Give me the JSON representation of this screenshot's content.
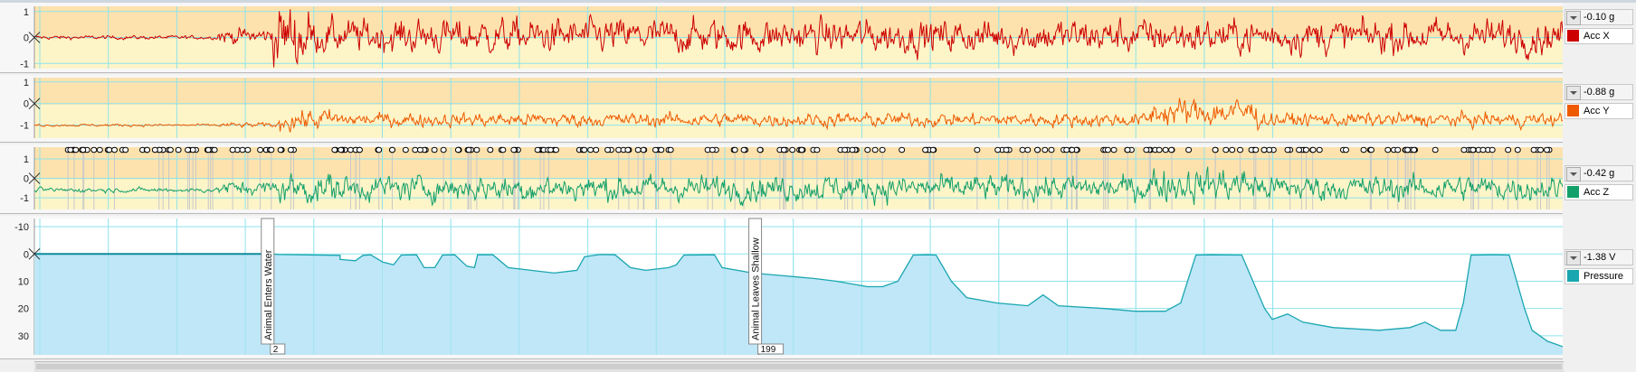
{
  "chart_data": [
    {
      "type": "line",
      "series": [
        {
          "name": "Acc X",
          "color": "#cc0000"
        }
      ],
      "unit": "g",
      "current_value": "-0.10 g",
      "ylim": [
        -1.2,
        1.2
      ],
      "yticks": [
        "1",
        "0",
        "-1"
      ],
      "ytick_values": [
        1,
        0,
        -1
      ],
      "background": "#fdf5c8",
      "band": "#fde2ad"
    },
    {
      "type": "line",
      "series": [
        {
          "name": "Acc Y",
          "color": "#ee5a00"
        }
      ],
      "unit": "g",
      "current_value": "-0.88 g",
      "ylim": [
        -1.6,
        1.2
      ],
      "yticks": [
        "1",
        "0",
        "-1"
      ],
      "ytick_values": [
        1,
        0,
        -1
      ],
      "background": "#fdf5c8",
      "band": "#fde2ad"
    },
    {
      "type": "line",
      "series": [
        {
          "name": "Acc Z",
          "color": "#13a06a"
        }
      ],
      "unit": "g",
      "current_value": "-0.42 g",
      "ylim": [
        -1.6,
        1.6
      ],
      "yticks": [
        "1",
        "0",
        "-1"
      ],
      "ytick_values": [
        1,
        0,
        -1
      ],
      "background": "#fdf5c8",
      "band": "#fde2ad"
    },
    {
      "type": "area",
      "series": [
        {
          "name": "Pressure",
          "color": "#1aa6b0"
        }
      ],
      "unit": "V",
      "current_value": "-1.38 V",
      "ylim": [
        37,
        -13
      ],
      "yticks": [
        "-10",
        "0",
        "10",
        "20",
        "30"
      ],
      "ytick_values": [
        -10,
        0,
        10,
        20,
        30
      ],
      "fill": "#bfe7f7",
      "depth_profile": [
        [
          0,
          0
        ],
        [
          0.155,
          0
        ],
        [
          0.16,
          0.2
        ],
        [
          0.2,
          0.5
        ],
        [
          0.2,
          2
        ],
        [
          0.21,
          2.5
        ],
        [
          0.215,
          0.5
        ],
        [
          0.22,
          0.3
        ],
        [
          0.228,
          3
        ],
        [
          0.235,
          4
        ],
        [
          0.24,
          0.4
        ],
        [
          0.25,
          0.3
        ],
        [
          0.255,
          5
        ],
        [
          0.262,
          5
        ],
        [
          0.267,
          0.4
        ],
        [
          0.275,
          0.3
        ],
        [
          0.283,
          4.5
        ],
        [
          0.288,
          5
        ],
        [
          0.29,
          0.3
        ],
        [
          0.3,
          0.3
        ],
        [
          0.31,
          5
        ],
        [
          0.325,
          6
        ],
        [
          0.34,
          7
        ],
        [
          0.355,
          6
        ],
        [
          0.36,
          1
        ],
        [
          0.37,
          0.2
        ],
        [
          0.38,
          0.3
        ],
        [
          0.39,
          5
        ],
        [
          0.4,
          6
        ],
        [
          0.415,
          5
        ],
        [
          0.42,
          4
        ],
        [
          0.425,
          0.4
        ],
        [
          0.445,
          0.3
        ],
        [
          0.45,
          5
        ],
        [
          0.47,
          7
        ],
        [
          0.49,
          8
        ],
        [
          0.51,
          9
        ],
        [
          0.525,
          10
        ],
        [
          0.535,
          11
        ],
        [
          0.545,
          12
        ],
        [
          0.555,
          12
        ],
        [
          0.565,
          10
        ],
        [
          0.575,
          0.4
        ],
        [
          0.585,
          0.3
        ],
        [
          0.59,
          0.4
        ],
        [
          0.6,
          10
        ],
        [
          0.61,
          16
        ],
        [
          0.63,
          18
        ],
        [
          0.65,
          19
        ],
        [
          0.66,
          15
        ],
        [
          0.67,
          19
        ],
        [
          0.7,
          20
        ],
        [
          0.72,
          21
        ],
        [
          0.74,
          21
        ],
        [
          0.75,
          18
        ],
        [
          0.76,
          0.4
        ],
        [
          0.77,
          0.3
        ],
        [
          0.79,
          0.4
        ],
        [
          0.805,
          20
        ],
        [
          0.81,
          24
        ],
        [
          0.82,
          22
        ],
        [
          0.83,
          25
        ],
        [
          0.85,
          27
        ],
        [
          0.88,
          28
        ],
        [
          0.9,
          27
        ],
        [
          0.91,
          25
        ],
        [
          0.92,
          28
        ],
        [
          0.93,
          28
        ],
        [
          0.935,
          18
        ],
        [
          0.94,
          0.4
        ],
        [
          0.955,
          0.3
        ],
        [
          0.965,
          0.4
        ],
        [
          0.975,
          20
        ],
        [
          0.98,
          28
        ],
        [
          0.99,
          32
        ],
        [
          1,
          34
        ]
      ]
    }
  ],
  "annotations": [
    {
      "label": "Animal Enters Water",
      "index": "2",
      "x": 0.155
    },
    {
      "label": "Animal Leaves Shallow",
      "index": "199",
      "x": 0.474
    }
  ]
}
